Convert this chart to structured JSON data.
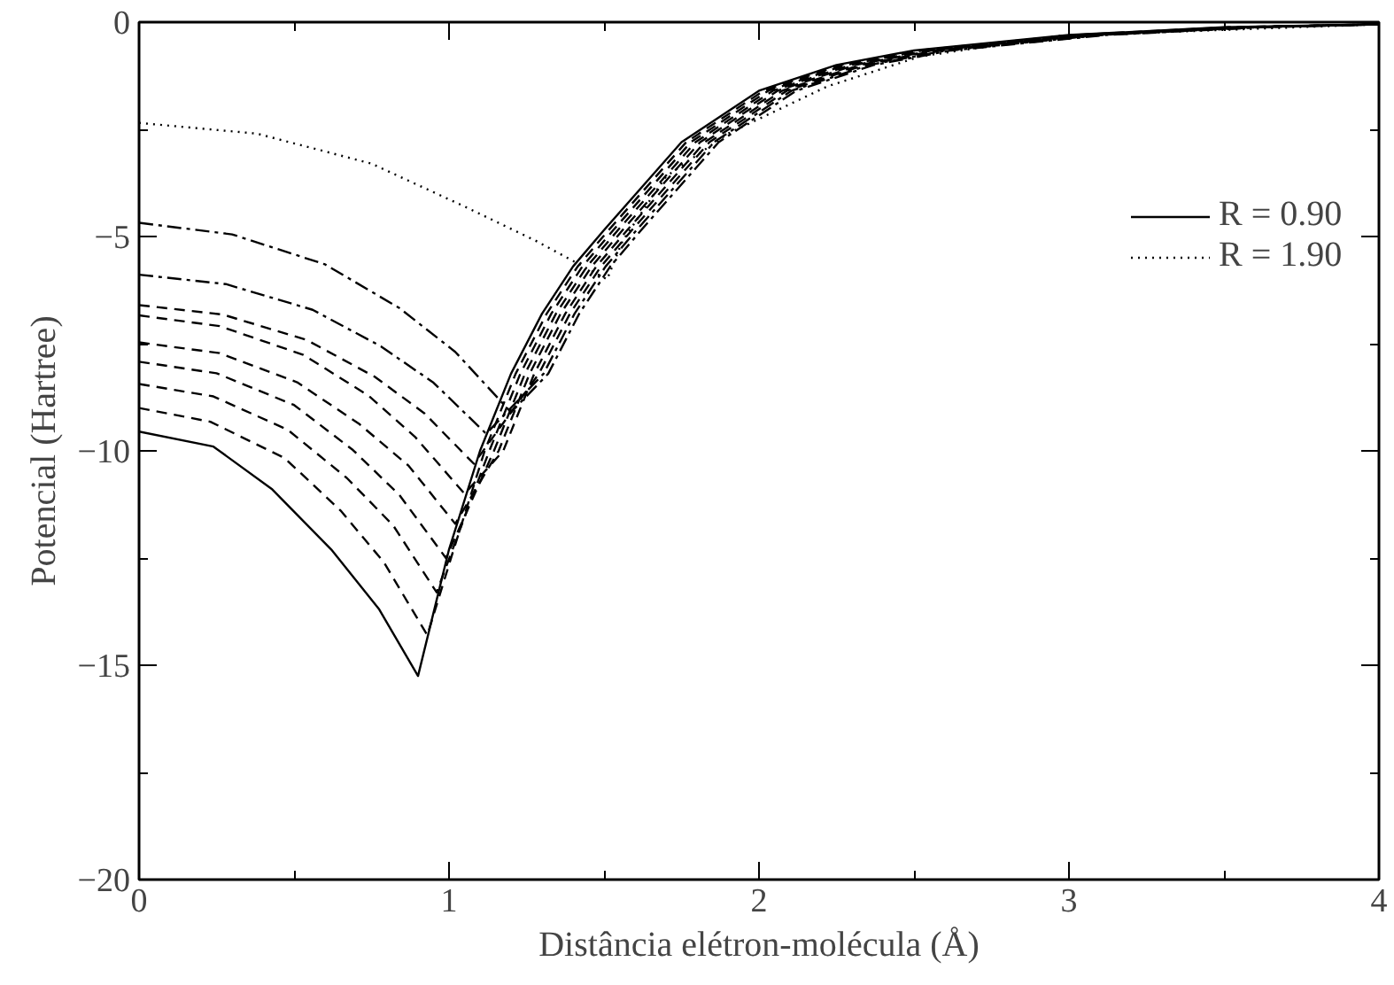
{
  "chart_data": {
    "type": "line",
    "xlabel": "Distância elétron-molécula (Å)",
    "ylabel": "Potencial (Hartree)",
    "xlim": [
      0,
      4
    ],
    "ylim": [
      -20,
      0
    ],
    "xticks": [
      0,
      {
        "value": 0.5,
        "label": null
      },
      1,
      {
        "value": 1.5,
        "label": null
      },
      2,
      {
        "value": 2.5,
        "label": null
      },
      3,
      {
        "value": 3.5,
        "label": null
      },
      4
    ],
    "yticks": [
      -20,
      {
        "value": -17.5,
        "label": null
      },
      -15,
      {
        "value": -12.5,
        "label": null
      },
      -10,
      {
        "value": -7.5,
        "label": null
      },
      -5,
      {
        "value": -2.5,
        "label": null
      },
      0
    ],
    "grid": false,
    "legend": "top right",
    "marker": "none",
    "series": [
      {
        "name": "R = 0.90",
        "color": "#000000",
        "line_style": "solid",
        "x": [
          0,
          0.24,
          0.43,
          0.62,
          0.775,
          0.9,
          1.0,
          1.1,
          1.2,
          1.3,
          1.4,
          1.5,
          1.75,
          2.0,
          2.25,
          2.5,
          3.0,
          3.5,
          4.0
        ],
        "values": [
          -9.55,
          -9.9,
          -10.9,
          -12.3,
          -13.7,
          -15.25,
          -12.3,
          -10.0,
          -8.2,
          -6.8,
          -5.7,
          -4.85,
          -2.8,
          -1.6,
          -1.0,
          -0.66,
          -0.3,
          -0.12,
          -0.05
        ]
      },
      {
        "color": "#000000",
        "line_style": "dashed",
        "x": [
          0,
          0.23,
          0.47,
          0.65,
          0.79,
          0.93,
          1.015,
          1.115,
          1.215,
          1.315,
          1.415,
          1.515,
          1.765,
          2.015,
          2.265,
          2.515,
          3.015,
          3.515,
          4.0
        ],
        "values": [
          -9.0,
          -9.32,
          -10.17,
          -11.39,
          -12.6,
          -14.3,
          -12.3,
          -10.0,
          -8.2,
          -6.8,
          -5.7,
          -4.85,
          -2.8,
          -1.6,
          -1.0,
          -0.66,
          -0.3,
          -0.12,
          -0.05
        ]
      },
      {
        "color": "#000000",
        "line_style": "dashed",
        "x": [
          0,
          0.24,
          0.48,
          0.67,
          0.82,
          0.96,
          1.13,
          1.23,
          1.33,
          1.43,
          1.53,
          1.78,
          2.03,
          2.28,
          2.53,
          3.03,
          3.53,
          4.0
        ],
        "values": [
          -8.44,
          -8.73,
          -9.51,
          -10.63,
          -11.74,
          -13.3,
          -10.0,
          -8.2,
          -6.8,
          -5.7,
          -4.85,
          -2.8,
          -1.6,
          -1.0,
          -0.66,
          -0.3,
          -0.12,
          -0.05
        ]
      },
      {
        "color": "#000000",
        "line_style": "dashed",
        "x": [
          0,
          0.25,
          0.5,
          0.69,
          0.84,
          0.99,
          1.145,
          1.245,
          1.345,
          1.445,
          1.545,
          1.795,
          2.045,
          2.295,
          2.545,
          3.045,
          3.545,
          4.0
        ],
        "values": [
          -7.92,
          -8.19,
          -8.93,
          -9.98,
          -11.03,
          -12.5,
          -10.0,
          -8.2,
          -6.8,
          -5.7,
          -4.85,
          -2.8,
          -1.6,
          -1.0,
          -0.66,
          -0.3,
          -0.12,
          -0.05
        ]
      },
      {
        "color": "#000000",
        "line_style": "dashed",
        "x": [
          0,
          0.26,
          0.51,
          0.71,
          0.87,
          1.02,
          1.16,
          1.26,
          1.36,
          1.46,
          1.56,
          1.81,
          2.06,
          2.31,
          2.56,
          3.06,
          3.56,
          4.0
        ],
        "values": [
          -7.47,
          -7.72,
          -8.4,
          -9.37,
          -10.35,
          -11.7,
          -10.0,
          -8.2,
          -6.8,
          -5.7,
          -4.85,
          -2.8,
          -1.6,
          -1.0,
          -0.66,
          -0.3,
          -0.12,
          -0.05
        ]
      },
      {
        "color": "#000000",
        "line_style": "dashed",
        "x": [
          0,
          0.26,
          0.53,
          0.74,
          0.89,
          1.05,
          1.175,
          1.275,
          1.375,
          1.475,
          1.575,
          1.825,
          2.075,
          2.325,
          2.575,
          3.075,
          3.575,
          4.0
        ],
        "values": [
          -6.84,
          -7.09,
          -7.76,
          -8.71,
          -9.67,
          -11.0,
          -10.0,
          -8.2,
          -6.8,
          -5.7,
          -4.85,
          -2.8,
          -1.6,
          -1.0,
          -0.66,
          -0.3,
          -0.12,
          -0.05
        ]
      },
      {
        "color": "#000000",
        "line_style": "dashed",
        "x": [
          0,
          0.27,
          0.54,
          0.76,
          0.92,
          1.08,
          1.29,
          1.39,
          1.49,
          1.59,
          1.84,
          2.09,
          2.34,
          2.59,
          3.09,
          3.59,
          4.0
        ],
        "values": [
          -6.6,
          -6.82,
          -7.41,
          -8.27,
          -9.12,
          -10.3,
          -8.2,
          -6.8,
          -5.7,
          -4.85,
          -2.8,
          -1.6,
          -1.0,
          -0.66,
          -0.3,
          -0.12,
          -0.05
        ]
      },
      {
        "color": "#000000",
        "line_style": "dashdot",
        "x": [
          0,
          0.28,
          0.56,
          0.78,
          0.95,
          1.12,
          1.305,
          1.405,
          1.505,
          1.605,
          1.855,
          2.105,
          2.355,
          2.605,
          3.105,
          3.605,
          4.0
        ],
        "values": [
          -5.89,
          -6.11,
          -6.71,
          -7.56,
          -8.41,
          -9.6,
          -8.2,
          -6.8,
          -5.7,
          -4.85,
          -2.8,
          -1.6,
          -1.0,
          -0.66,
          -0.3,
          -0.12,
          -0.05
        ]
      },
      {
        "color": "#000000",
        "line_style": "dashdot",
        "x": [
          0,
          0.3,
          0.6,
          0.84,
          1.02,
          1.2,
          1.32,
          1.42,
          1.52,
          1.62,
          1.87,
          2.12,
          2.37,
          2.62,
          3.12,
          3.62,
          4.0
        ],
        "values": [
          -4.68,
          -4.95,
          -5.65,
          -6.67,
          -7.69,
          -9.1,
          -8.2,
          -6.8,
          -5.7,
          -4.85,
          -2.8,
          -1.6,
          -1.0,
          -0.66,
          -0.3,
          -0.12,
          -0.05
        ]
      },
      {
        "name": "R = 1.90",
        "color": "#000000",
        "line_style": "dotted",
        "x": [
          0,
          0.38,
          0.75,
          1.05,
          1.28,
          1.51,
          1.56,
          1.7,
          1.9,
          2.22,
          2.52,
          2.97,
          4.0
        ],
        "values": [
          -2.35,
          -2.6,
          -3.3,
          -4.3,
          -5.1,
          -6.0,
          -5.1,
          -3.6,
          -2.6,
          -1.5,
          -0.8,
          -0.32,
          -0.05
        ]
      }
    ]
  }
}
